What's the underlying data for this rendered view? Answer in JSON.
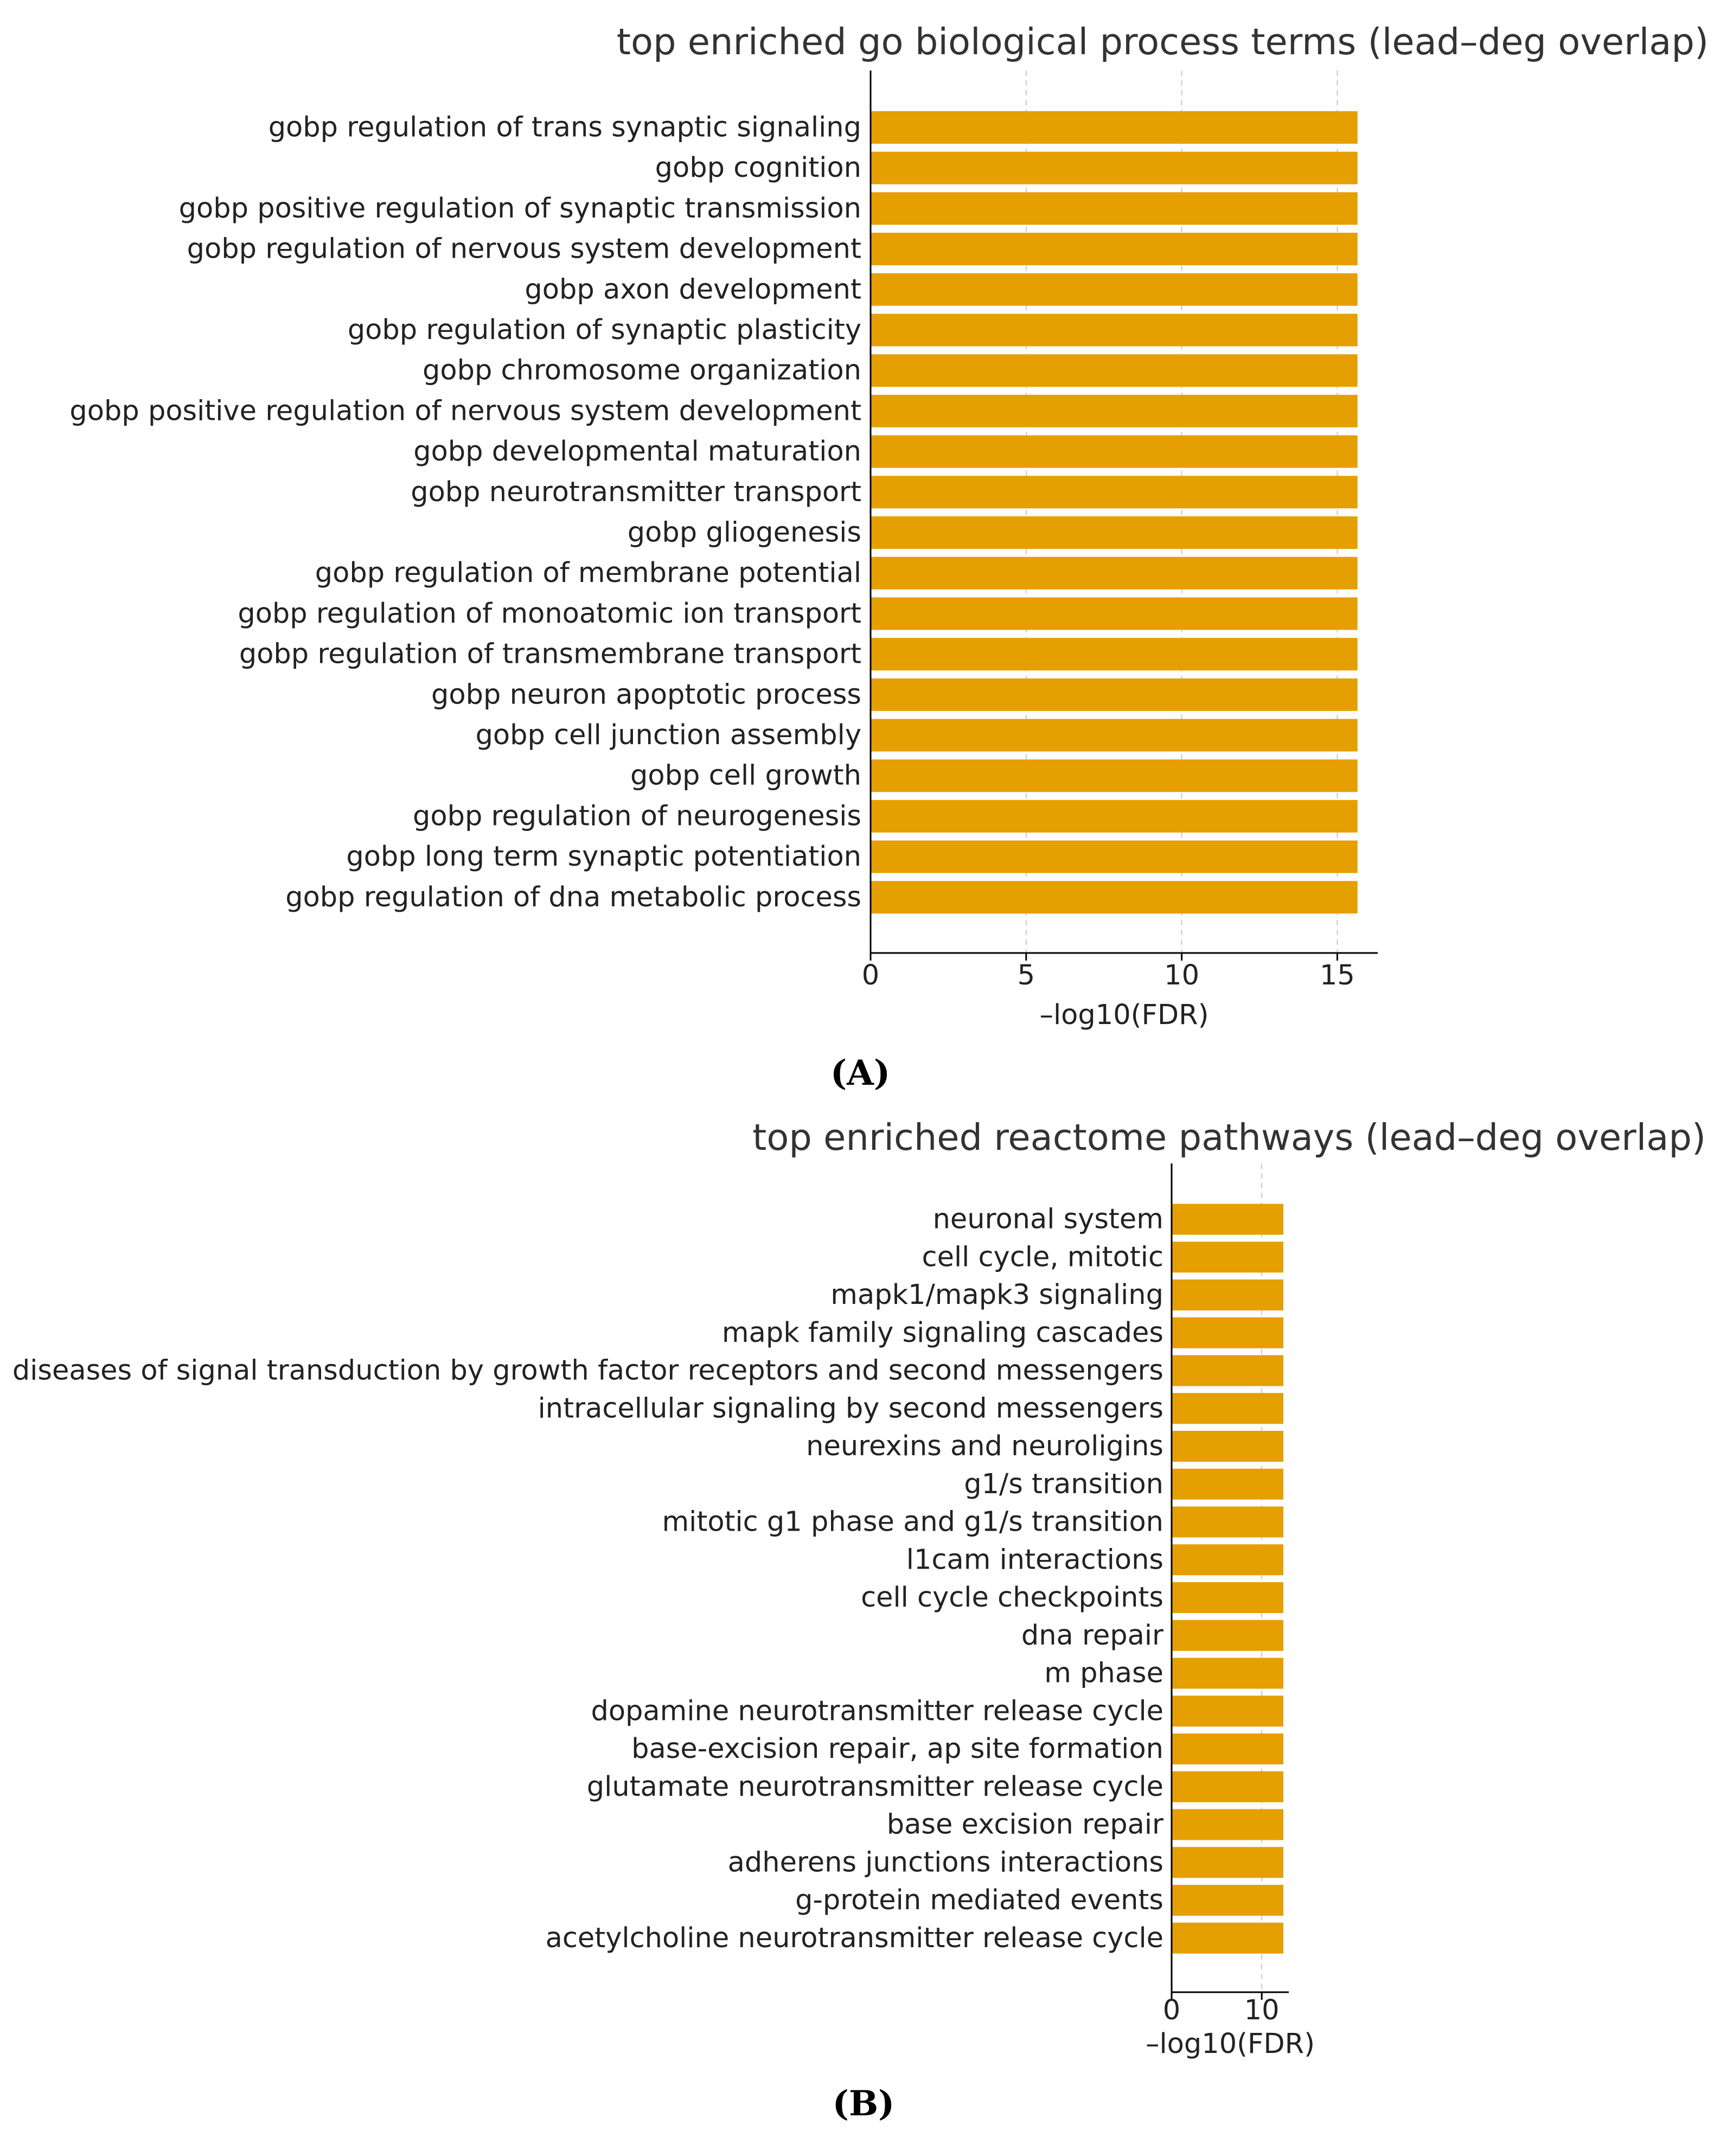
{
  "chart_data": [
    {
      "type": "bar",
      "orientation": "horizontal",
      "title": "top enriched go biological process terms (lead–deg overlap)",
      "xlabel": "–log10(FDR)",
      "ylabel": "",
      "panel_label": "(A)",
      "xlim": [
        0,
        16.3
      ],
      "xticks": [
        0,
        5,
        10,
        15
      ],
      "grid": "x-dashed",
      "bar_color": "#E69F00",
      "categories": [
        "gobp regulation of trans synaptic signaling",
        "gobp cognition",
        "gobp positive regulation of synaptic transmission",
        "gobp regulation of nervous system development",
        "gobp axon development",
        "gobp regulation of synaptic plasticity",
        "gobp chromosome organization",
        "gobp positive regulation of nervous system development",
        "gobp developmental maturation",
        "gobp neurotransmitter transport",
        "gobp gliogenesis",
        "gobp regulation of membrane potential",
        "gobp regulation of monoatomic ion transport",
        "gobp regulation of transmembrane transport",
        "gobp neuron apoptotic process",
        "gobp cell junction assembly",
        "gobp cell growth",
        "gobp regulation of neurogenesis",
        "gobp long term synaptic potentiation",
        "gobp regulation of dna metabolic process"
      ],
      "values": [
        15.65,
        15.65,
        15.65,
        15.65,
        15.65,
        15.65,
        15.65,
        15.65,
        15.65,
        15.65,
        15.65,
        15.65,
        15.65,
        15.65,
        15.65,
        15.65,
        15.65,
        15.65,
        15.65,
        15.65
      ]
    },
    {
      "type": "bar",
      "orientation": "horizontal",
      "title": "top enriched reactome pathways (lead–deg overlap)",
      "xlabel": "–log10(FDR)",
      "ylabel": "",
      "panel_label": "(B)",
      "xlim": [
        0,
        13.0
      ],
      "xticks": [
        0,
        10
      ],
      "grid": "x-dashed",
      "bar_color": "#E69F00",
      "categories": [
        "neuronal system",
        "cell cycle, mitotic",
        "mapk1/mapk3 signaling",
        "mapk family signaling cascades",
        "diseases of signal transduction by growth factor receptors and second messengers",
        "intracellular signaling by second messengers",
        "neurexins and neuroligins",
        "g1/s transition",
        "mitotic g1 phase and g1/s transition",
        "l1cam interactions",
        "cell cycle checkpoints",
        "dna repair",
        "m phase",
        "dopamine neurotransmitter release cycle",
        "base-excision repair, ap site formation",
        "glutamate neurotransmitter release cycle",
        "base excision repair",
        "adherens junctions interactions",
        "g-protein mediated events",
        "acetylcholine neurotransmitter release cycle"
      ],
      "values": [
        12.4,
        12.4,
        12.4,
        12.4,
        12.4,
        12.4,
        12.4,
        12.4,
        12.4,
        12.4,
        12.4,
        12.4,
        12.4,
        12.4,
        12.4,
        12.4,
        12.4,
        12.4,
        12.4,
        12.4
      ]
    }
  ]
}
